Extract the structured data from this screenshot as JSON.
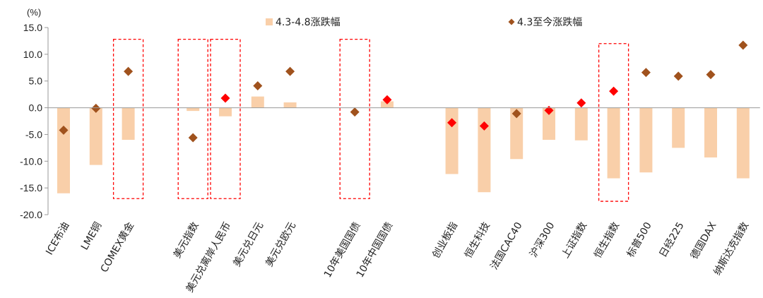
{
  "chart_data": {
    "type": "bar",
    "ylabel": "(%)",
    "ylim": [
      -20,
      15
    ],
    "yticks": [
      "15.0",
      "10.0",
      "5.0",
      "0.0",
      "-5.0",
      "-10.0",
      "-15.0",
      "-20.0"
    ],
    "grid": false,
    "legend_position": "top",
    "colors": {
      "bar": "#F9CFA9",
      "marker": "#A0521D",
      "marker_highlight": "#FF0000",
      "box": "#FF0000",
      "axis": "#999999"
    },
    "categories": [
      "ICE布油",
      "LME铜",
      "COMEX黄金",
      "美元指数",
      "美元兑离岸人民币",
      "美元兑日元",
      "美元兑欧元",
      "10年美国国债",
      "10年中国国债",
      "创业板指",
      "恒生科技",
      "法国CAC40",
      "沪深300",
      "上证指数",
      "恒生指数",
      "标普500",
      "日经225",
      "德国DAX",
      "纳斯达克指数"
    ],
    "groups": [
      3,
      4,
      2,
      10
    ],
    "series": [
      {
        "name": "4.3-4.8涨跌幅",
        "kind": "bar",
        "values": [
          -16.0,
          -10.7,
          -6.0,
          -0.6,
          -1.6,
          2.1,
          1.0,
          null,
          1.2,
          -12.4,
          -15.8,
          -9.6,
          -6.0,
          -6.1,
          -13.2,
          -12.1,
          -7.5,
          -9.3,
          -13.2
        ]
      },
      {
        "name": "4.3至今涨跌幅",
        "kind": "marker",
        "values": [
          -4.2,
          -0.1,
          6.8,
          -5.6,
          1.8,
          4.1,
          6.8,
          -0.8,
          1.5,
          -2.8,
          -3.4,
          -1.1,
          -0.5,
          0.9,
          3.1,
          6.6,
          5.9,
          6.2,
          11.7
        ],
        "highlighted": [
          false,
          false,
          false,
          false,
          true,
          false,
          false,
          false,
          true,
          true,
          true,
          false,
          true,
          true,
          true,
          false,
          false,
          false,
          false
        ]
      }
    ],
    "highlight_boxes": [
      {
        "category": "COMEX黄金",
        "from": -17,
        "to": 12.8
      },
      {
        "category": "美元指数",
        "from": -17,
        "to": 12.8
      },
      {
        "category": "美元兑离岸人民币",
        "from": -17,
        "to": 12.8
      },
      {
        "category": "10年美国国债",
        "from": -17,
        "to": 12.8
      },
      {
        "category": "恒生指数",
        "from": -17.5,
        "to": 12.0
      }
    ]
  }
}
